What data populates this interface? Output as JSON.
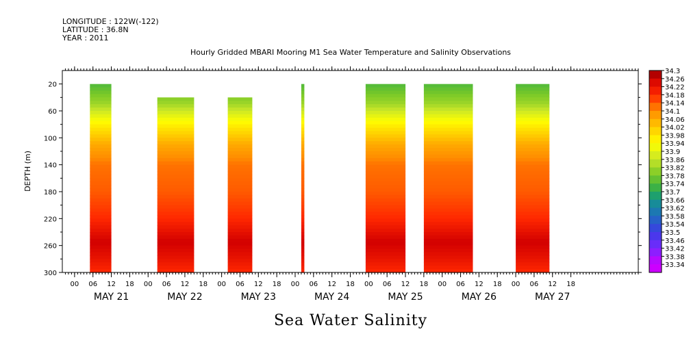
{
  "header": {
    "line1": "LONGITUDE : 122W(-122)",
    "line2": "LATITUDE : 36.8N",
    "line3": "YEAR : 2011"
  },
  "chart_data": {
    "type": "heatmap",
    "title": "Hourly Gridded MBARI Mooring M1 Sea Water Temperature and Salinity Observations",
    "caption": "Sea Water Salinity",
    "ylabel": "DEPTH (m)",
    "xlabel": "",
    "ylim": [
      300,
      0
    ],
    "y_ticks": [
      20,
      60,
      100,
      140,
      180,
      220,
      260,
      300
    ],
    "x_hour_ticks": [
      "00",
      "06",
      "12",
      "18",
      "00",
      "06",
      "12",
      "18",
      "00",
      "06",
      "12",
      "18",
      "00",
      "06",
      "12",
      "18",
      "00",
      "06",
      "12",
      "18",
      "00",
      "06",
      "12",
      "18",
      "00",
      "06",
      "12",
      "18"
    ],
    "day_labels": [
      "MAY 21",
      "MAY 22",
      "MAY 23",
      "MAY 24",
      "MAY 25",
      "MAY 26",
      "MAY 27"
    ],
    "x_range_hours": [
      -4,
      184
    ],
    "colorbar": {
      "min": 33.34,
      "max": 34.3,
      "step": 0.04,
      "labels": [
        "34.3",
        "34.26",
        "34.22",
        "34.18",
        "34.14",
        "34.1",
        "34.06",
        "34.02",
        "33.98",
        "33.94",
        "33.9",
        "33.86",
        "33.82",
        "33.78",
        "33.74",
        "33.7",
        "33.66",
        "33.62",
        "33.58",
        "33.54",
        "33.5",
        "33.46",
        "33.42",
        "33.38",
        "33.34"
      ]
    },
    "segments": [
      {
        "start_hour": 5,
        "end_hour": 12,
        "top_depth": 20
      },
      {
        "start_hour": 27,
        "end_hour": 39,
        "top_depth": 40
      },
      {
        "start_hour": 50,
        "end_hour": 58,
        "top_depth": 40
      },
      {
        "start_hour": 74,
        "end_hour": 75,
        "top_depth": 20
      },
      {
        "start_hour": 95,
        "end_hour": 108,
        "top_depth": 20
      },
      {
        "start_hour": 114,
        "end_hour": 130,
        "top_depth": 20
      },
      {
        "start_hour": 144,
        "end_hour": 155,
        "top_depth": 20
      }
    ],
    "profile": [
      {
        "depth": 20,
        "value": 33.74
      },
      {
        "depth": 50,
        "value": 33.82
      },
      {
        "depth": 80,
        "value": 33.96
      },
      {
        "depth": 110,
        "value": 34.06
      },
      {
        "depth": 140,
        "value": 34.12
      },
      {
        "depth": 180,
        "value": 34.14
      },
      {
        "depth": 220,
        "value": 34.18
      },
      {
        "depth": 255,
        "value": 34.26
      },
      {
        "depth": 280,
        "value": 34.22
      },
      {
        "depth": 300,
        "value": 34.18
      }
    ]
  }
}
